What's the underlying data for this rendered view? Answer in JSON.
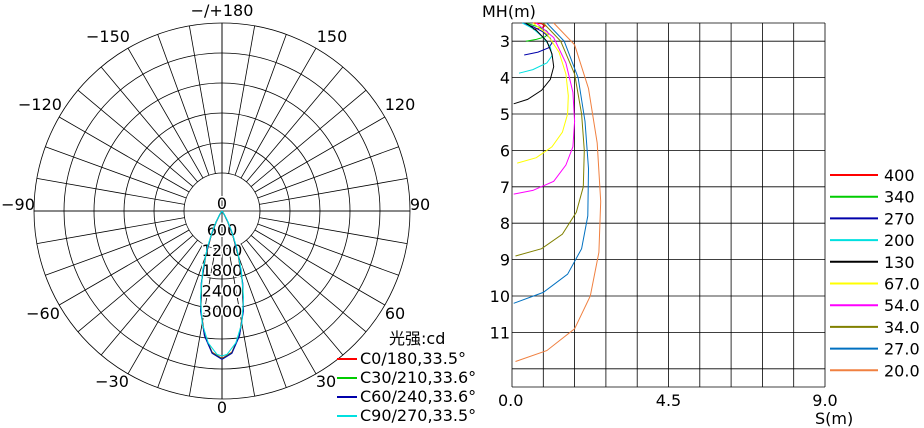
{
  "chart_data": [
    {
      "type": "polar",
      "unit_label": "光强:cd",
      "angle_labels": [
        {
          "text": "0",
          "angle": 0
        },
        {
          "text": "30",
          "angle": 30
        },
        {
          "text": "60",
          "angle": 60
        },
        {
          "text": "90",
          "angle": 90
        },
        {
          "text": "120",
          "angle": 120
        },
        {
          "text": "150",
          "angle": 150
        },
        {
          "text": "−/+180",
          "angle": 180
        },
        {
          "text": "−150",
          "angle": -150
        },
        {
          "text": "−120",
          "angle": -120
        },
        {
          "text": "−90",
          "angle": -90
        },
        {
          "text": "−60",
          "angle": -60
        },
        {
          "text": "−30",
          "angle": -30
        }
      ],
      "radial_ticks": [
        "0",
        "600",
        "1200",
        "1800",
        "2400",
        "3000"
      ],
      "rmax": 3000,
      "series": [
        {
          "name": "C0/180,33.5°",
          "color": "#ff0000",
          "angles": [
            -36,
            -32,
            -28,
            -24,
            -20,
            -16,
            -12,
            -8,
            -4,
            0,
            4,
            8,
            12,
            16,
            20,
            24,
            28,
            32,
            36
          ],
          "values": [
            0,
            80,
            240,
            520,
            950,
            1480,
            2030,
            2500,
            2830,
            2950,
            2830,
            2500,
            2030,
            1480,
            950,
            520,
            240,
            80,
            0
          ]
        },
        {
          "name": "C30/210,33.6°",
          "color": "#00cc00",
          "angles": [
            -36,
            -32,
            -28,
            -24,
            -20,
            -16,
            -12,
            -8,
            -4,
            0,
            4,
            8,
            12,
            16,
            20,
            24,
            28,
            32,
            36
          ],
          "values": [
            0,
            85,
            250,
            530,
            960,
            1490,
            2040,
            2510,
            2840,
            2960,
            2840,
            2510,
            2040,
            1490,
            960,
            530,
            250,
            85,
            0
          ]
        },
        {
          "name": "C60/240,33.6°",
          "color": "#0000aa",
          "angles": [
            -36,
            -32,
            -28,
            -24,
            -20,
            -16,
            -12,
            -8,
            -4,
            0,
            4,
            8,
            12,
            16,
            20,
            24,
            28,
            32,
            36
          ],
          "values": [
            0,
            90,
            260,
            540,
            970,
            1500,
            2050,
            2520,
            2850,
            2965,
            2850,
            2520,
            2050,
            1500,
            970,
            540,
            260,
            90,
            0
          ]
        },
        {
          "name": "C90/270,33.5°",
          "color": "#00e0e0",
          "angles": [
            -38,
            -34,
            -30,
            -26,
            -22,
            -18,
            -14,
            -10,
            -6,
            -2,
            0,
            2,
            6,
            10,
            14,
            18,
            22,
            26,
            30,
            34,
            38
          ],
          "values": [
            0,
            60,
            190,
            420,
            780,
            1250,
            1780,
            2280,
            2650,
            2870,
            2900,
            2870,
            2650,
            2280,
            1780,
            1250,
            780,
            420,
            190,
            60,
            0
          ]
        }
      ]
    },
    {
      "type": "line",
      "ylabel": "MH(m)",
      "xlabel": "S(m)",
      "x_ticks": [
        "0.0",
        "4.5",
        "9.0"
      ],
      "y_ticks": [
        "3",
        "4",
        "5",
        "6",
        "7",
        "8",
        "9",
        "10",
        "11"
      ],
      "xlim": [
        0,
        9
      ],
      "ylim": [
        2.5,
        12.5
      ],
      "series": [
        {
          "name": "400",
          "color": "#ff0000",
          "x": [
            0.6,
            0.85,
            0.95,
            0.85,
            0.6
          ],
          "y": [
            2.5,
            2.52,
            2.58,
            2.63,
            2.68
          ]
        },
        {
          "name": "340",
          "color": "#00cc00",
          "x": [
            0.4,
            0.6,
            0.8,
            1.0,
            1.05,
            0.95,
            0.7,
            0.4
          ],
          "y": [
            2.5,
            2.56,
            2.62,
            2.72,
            2.8,
            2.88,
            2.95,
            3.0
          ]
        },
        {
          "name": "270",
          "color": "#0000aa",
          "x": [
            0.3,
            0.6,
            0.9,
            1.1,
            1.15,
            1.05,
            0.75,
            0.35
          ],
          "y": [
            2.5,
            2.6,
            2.75,
            2.92,
            3.05,
            3.18,
            3.3,
            3.38
          ]
        },
        {
          "name": "200",
          "color": "#00e0e0",
          "x": [
            0.3,
            0.6,
            0.9,
            1.1,
            1.15,
            1.0,
            0.6,
            0.2
          ],
          "y": [
            2.5,
            2.65,
            2.9,
            3.15,
            3.4,
            3.6,
            3.78,
            3.88
          ]
        },
        {
          "name": "130",
          "color": "#000000",
          "x": [
            0.4,
            0.7,
            1.0,
            1.15,
            1.2,
            1.1,
            0.85,
            0.45,
            0.05
          ],
          "y": [
            2.5,
            2.7,
            3.0,
            3.35,
            3.7,
            4.05,
            4.35,
            4.6,
            4.72
          ]
        },
        {
          "name": "67.0",
          "color": "#ffff00",
          "x": [
            0.6,
            1.0,
            1.35,
            1.55,
            1.62,
            1.6,
            1.45,
            1.15,
            0.7,
            0.15
          ],
          "y": [
            2.5,
            2.8,
            3.3,
            3.9,
            4.5,
            5.0,
            5.5,
            5.9,
            6.2,
            6.35
          ]
        },
        {
          "name": "54.0",
          "color": "#ff00ff",
          "x": [
            0.7,
            1.2,
            1.55,
            1.75,
            1.8,
            1.75,
            1.55,
            1.2,
            0.6,
            0.05
          ],
          "y": [
            2.5,
            2.9,
            3.6,
            4.4,
            5.2,
            5.9,
            6.4,
            6.85,
            7.1,
            7.2
          ]
        },
        {
          "name": "34.0",
          "color": "#808000",
          "x": [
            0.9,
            1.4,
            1.8,
            2.0,
            2.08,
            2.05,
            1.85,
            1.45,
            0.85,
            0.1
          ],
          "y": [
            2.5,
            3.0,
            3.9,
            5.0,
            6.0,
            7.0,
            7.7,
            8.3,
            8.7,
            8.9
          ]
        },
        {
          "name": "27.0",
          "color": "#0070c0",
          "x": [
            1.0,
            1.5,
            1.9,
            2.1,
            2.2,
            2.18,
            2.0,
            1.6,
            0.9,
            0.05
          ],
          "y": [
            2.5,
            3.0,
            4.0,
            5.2,
            6.5,
            7.8,
            8.7,
            9.4,
            9.9,
            10.2
          ]
        },
        {
          "name": "20.0",
          "color": "#f08040",
          "x": [
            1.2,
            1.8,
            2.2,
            2.45,
            2.55,
            2.5,
            2.25,
            1.8,
            1.0,
            0.1
          ],
          "y": [
            2.5,
            3.1,
            4.3,
            5.8,
            7.4,
            8.8,
            10.0,
            10.9,
            11.5,
            11.8
          ]
        }
      ]
    }
  ]
}
